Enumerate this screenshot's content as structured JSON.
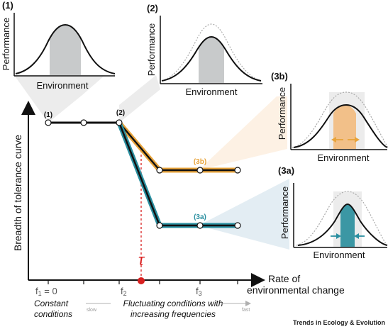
{
  "panel_labels": {
    "p1": "(1)",
    "p2": "(2)",
    "p3b": "(3b)",
    "p3a": "(3a)"
  },
  "inset_labels": {
    "performance": "Performance",
    "environment": "Environment"
  },
  "axis": {
    "y_label": "Breadth of tolerance curve",
    "x_label_line1": "Rate of",
    "x_label_line2": "environmental change"
  },
  "ticks": {
    "f1": "f",
    "f1_sub": "1",
    "f1_suffix": " = 0",
    "f2": "f",
    "f2_sub": "2",
    "f3": "f",
    "f3_sub": "3"
  },
  "point_labels": {
    "pt1": "(1)",
    "pt2": "(2)",
    "pt3b": "(3b)",
    "pt3a": "(3a)"
  },
  "tau": "τ",
  "bottom": {
    "constant_line1": "Constant",
    "constant_line2": "conditions",
    "slow": "slow",
    "fluct_line1": "Fluctuating conditions with",
    "fluct_line2": "increasing frequencies",
    "fast": "fast"
  },
  "journal": "Trends in Ecology & Evolution",
  "colors": {
    "orange": "#e8a33a",
    "orange_fill": "#f2c089",
    "teal": "#2a8fa0",
    "teal_fill": "#3b97a4",
    "gray_fill": "#c8cacb",
    "red": "#d92020",
    "cone_orange": "#fdf1e4",
    "cone_teal": "#e3edf3",
    "cone_gray": "#ececec"
  }
}
